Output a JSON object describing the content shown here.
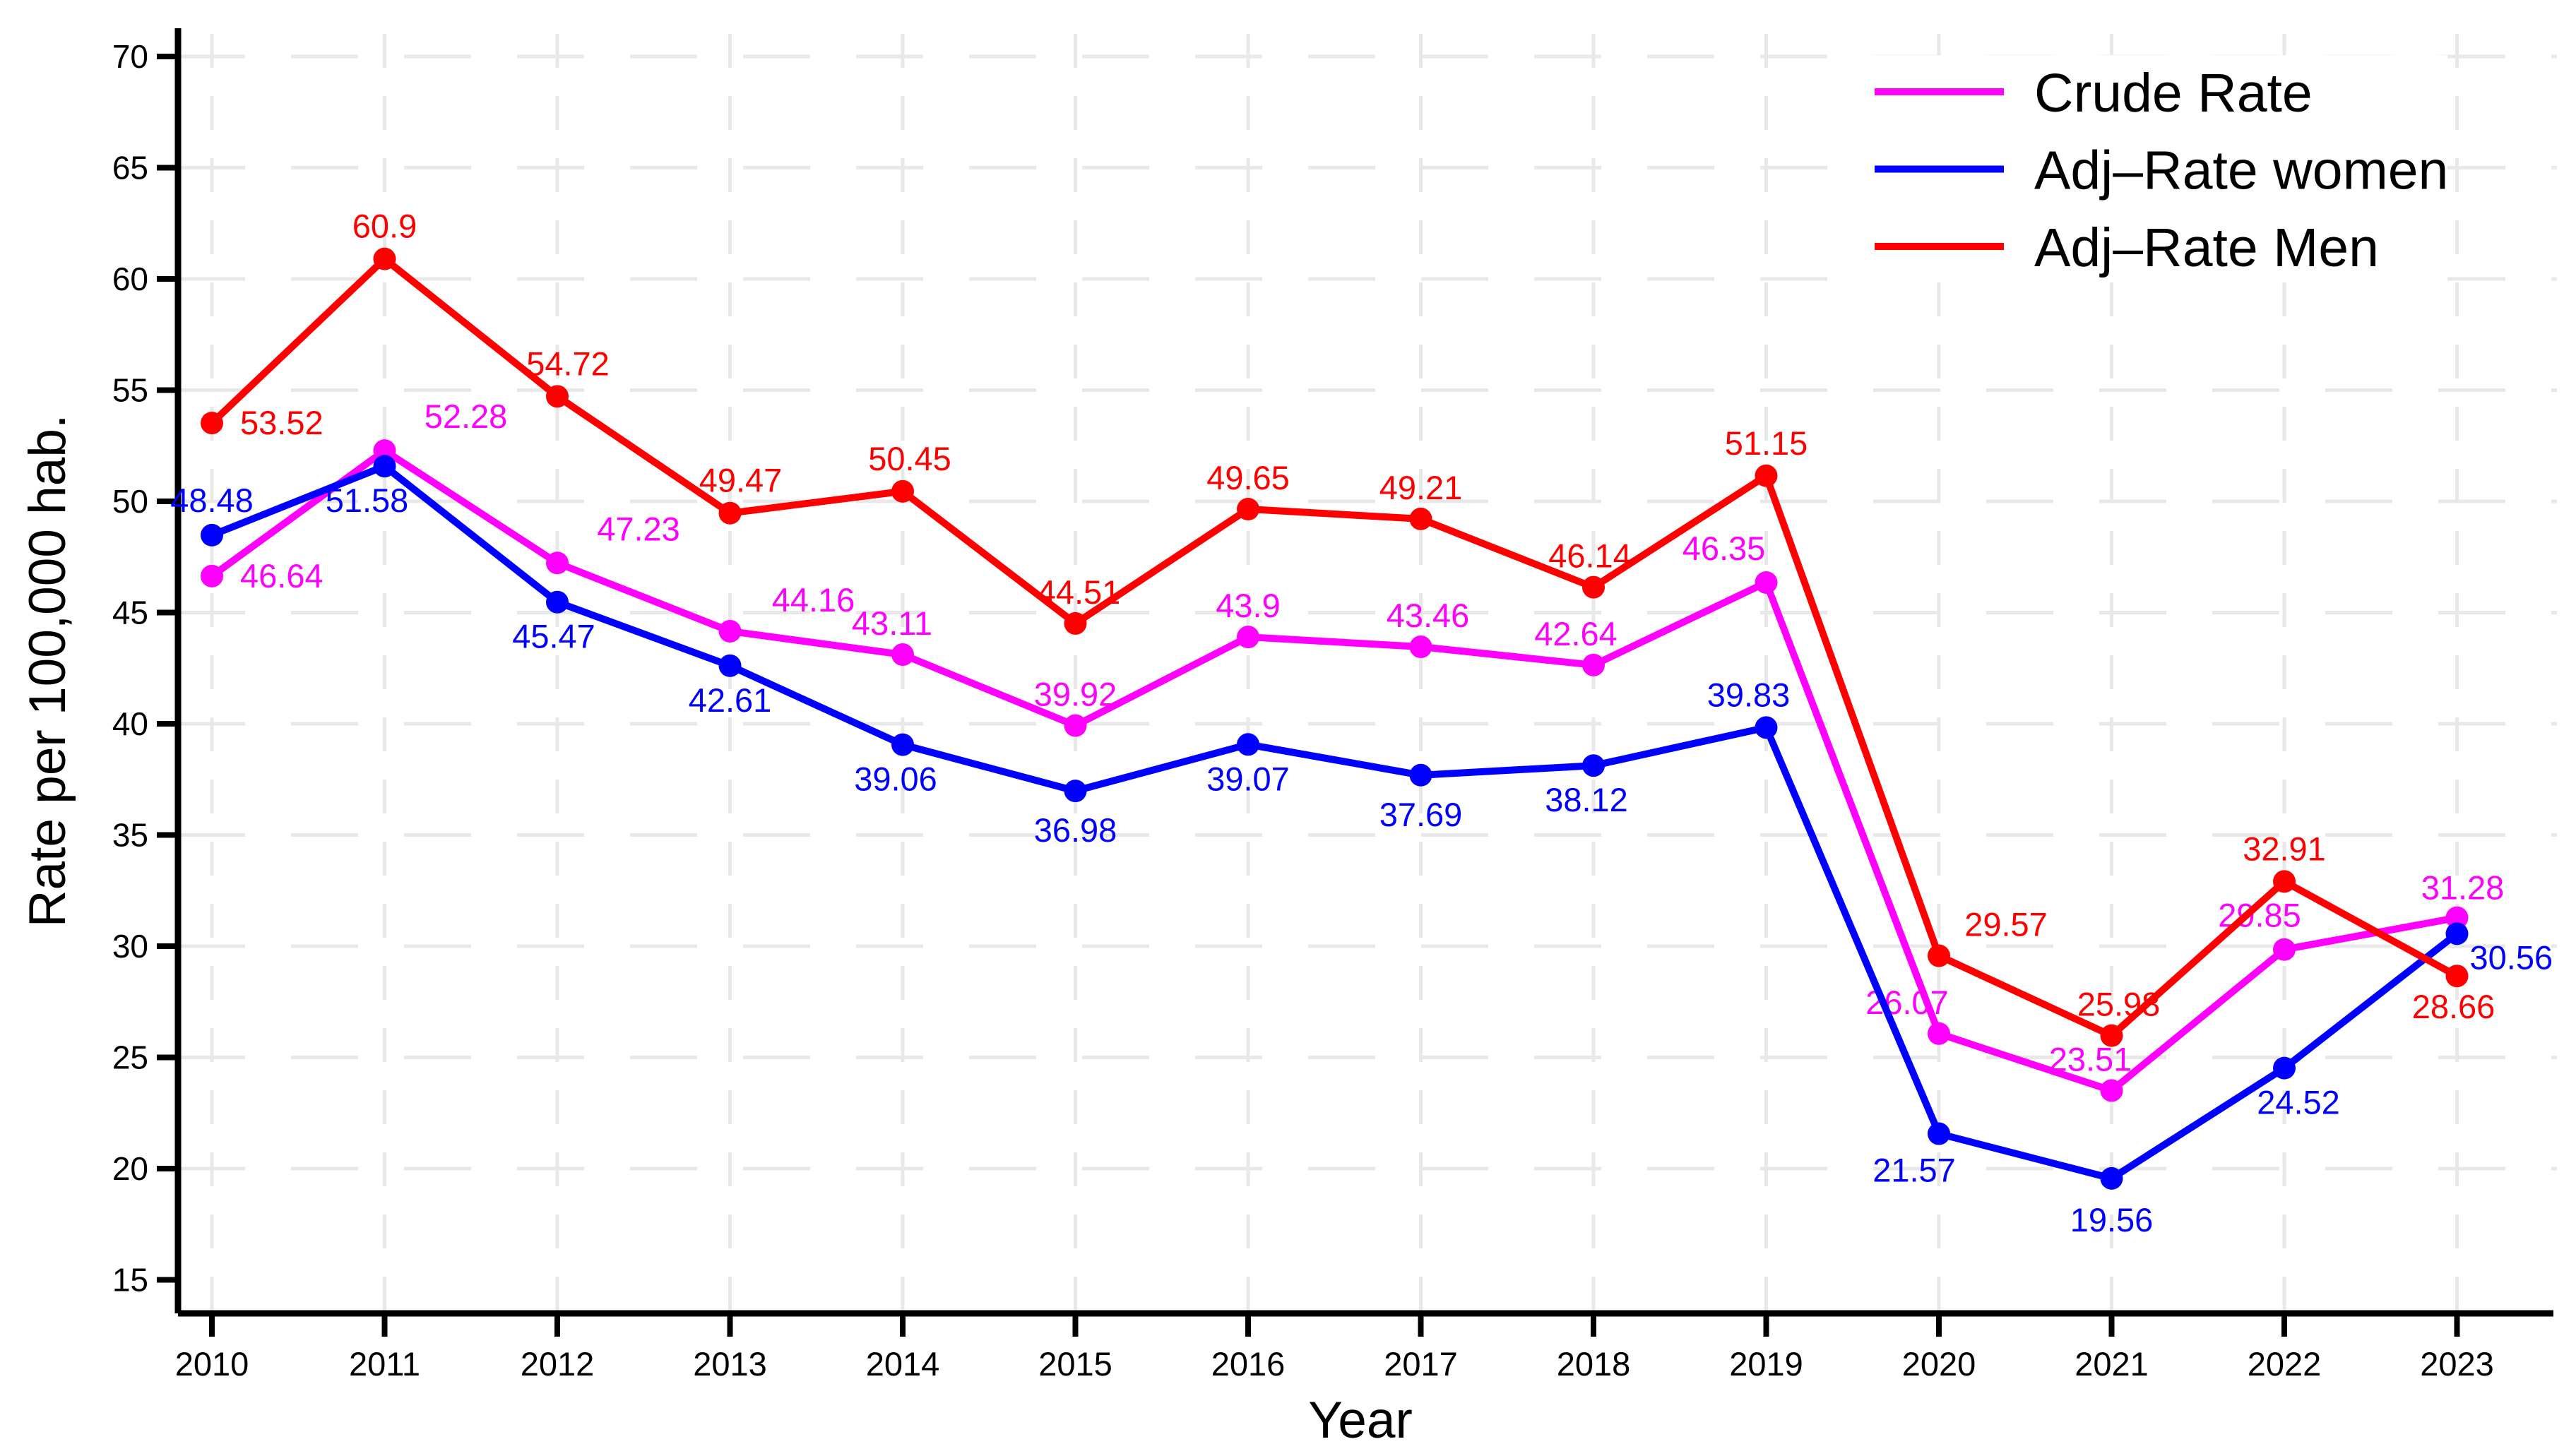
{
  "chart_data": {
    "type": "line",
    "title": "",
    "xlabel": "Year",
    "ylabel": "Rate per 100,000 hab.",
    "x": [
      2010,
      2011,
      2012,
      2013,
      2014,
      2015,
      2016,
      2017,
      2018,
      2019,
      2020,
      2021,
      2022,
      2023
    ],
    "yticks": [
      15,
      20,
      25,
      30,
      35,
      40,
      45,
      50,
      55,
      60,
      65,
      70
    ],
    "ylim": [
      15,
      70
    ],
    "grid": true,
    "grid_color": "#e8e8e8",
    "axis_color": "#000000",
    "background_color": "#ffffff",
    "legend": {
      "position": "top-right-inside",
      "entries": [
        "Crude Rate",
        "Adj–Rate women",
        "Adj–Rate Men"
      ]
    },
    "series": [
      {
        "name": "Crude Rate",
        "color": "#ff00ff",
        "values": [
          46.64,
          52.28,
          47.23,
          44.16,
          43.11,
          39.92,
          43.9,
          43.46,
          42.64,
          46.35,
          26.07,
          23.51,
          29.85,
          31.28
        ],
        "label_anchor": [
          "s",
          "m",
          "m",
          "m",
          "m",
          "m",
          "m",
          "m",
          "m",
          "m",
          "m",
          "m",
          "m",
          "m"
        ],
        "label_dx": [
          40,
          115,
          115,
          118,
          -15,
          0,
          0,
          10,
          -25,
          -60,
          -45,
          -30,
          -35,
          8
        ],
        "label_dy": [
          16,
          -32,
          -32,
          -28,
          -28,
          -28,
          -28,
          -28,
          -28,
          -32,
          -28,
          -28,
          -32,
          -26
        ]
      },
      {
        "name": "Adj–Rate women",
        "color": "#0000ff",
        "values": [
          48.48,
          51.58,
          45.47,
          42.61,
          39.06,
          36.98,
          39.07,
          37.69,
          38.12,
          39.83,
          21.57,
          19.56,
          24.52,
          30.56
        ],
        "label_anchor": [
          "m",
          "m",
          "m",
          "m",
          "m",
          "m",
          "m",
          "m",
          "m",
          "m",
          "m",
          "m",
          "m",
          "s"
        ],
        "label_dx": [
          0,
          -25,
          -5,
          0,
          -10,
          0,
          0,
          0,
          -10,
          -25,
          -35,
          0,
          20,
          18
        ],
        "label_dy": [
          -33,
          65,
          65,
          65,
          65,
          72,
          65,
          72,
          65,
          -30,
          68,
          75,
          65,
          50
        ]
      },
      {
        "name": "Adj–Rate Men",
        "color": "#ff0000",
        "values": [
          53.52,
          60.9,
          54.72,
          49.47,
          50.45,
          44.51,
          49.65,
          49.21,
          46.14,
          51.15,
          29.57,
          25.98,
          32.91,
          28.66
        ],
        "label_anchor": [
          "s",
          "m",
          "m",
          "m",
          "m",
          "m",
          "m",
          "m",
          "m",
          "m",
          "m",
          "m",
          "m",
          "m"
        ],
        "label_dx": [
          40,
          0,
          15,
          15,
          10,
          5,
          0,
          0,
          -5,
          0,
          95,
          10,
          0,
          -5
        ],
        "label_dy": [
          16,
          -30,
          -30,
          -30,
          -30,
          -28,
          -28,
          -28,
          -28,
          -30,
          -28,
          -28,
          -30,
          60
        ]
      }
    ]
  }
}
